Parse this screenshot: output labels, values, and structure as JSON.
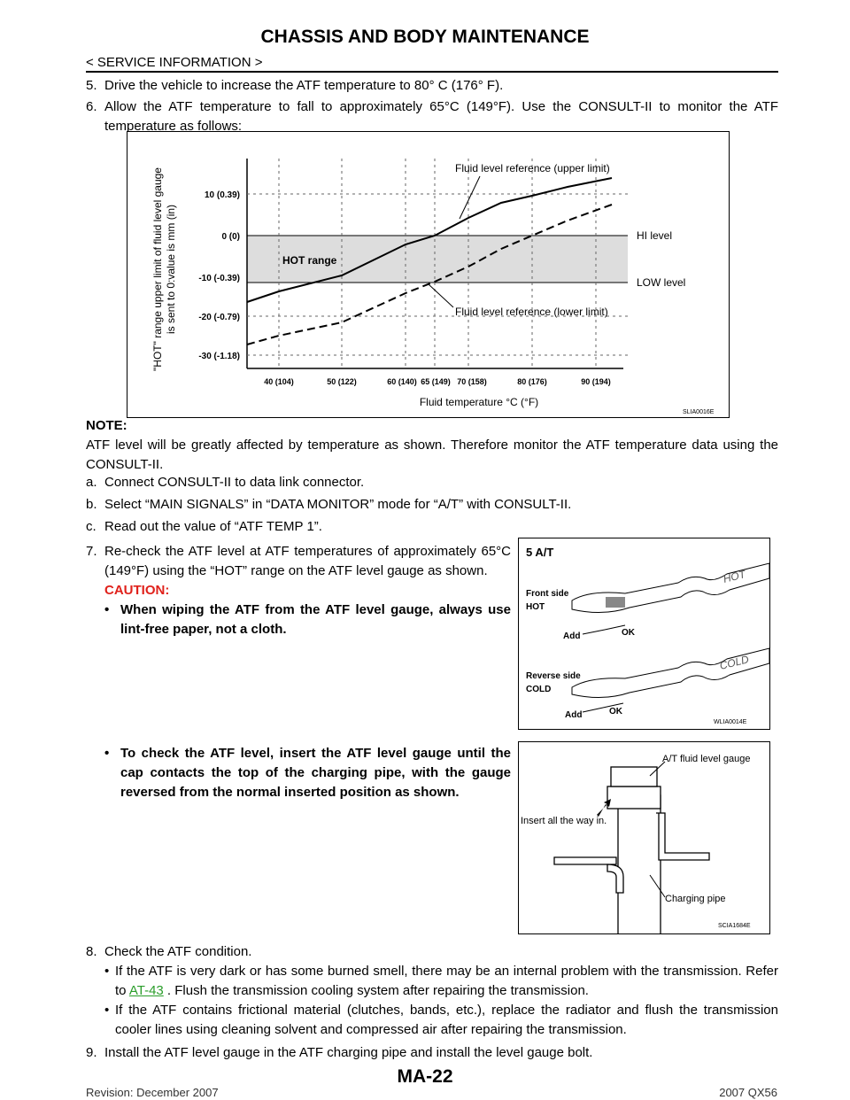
{
  "header": {
    "title": "CHASSIS AND BODY MAINTENANCE",
    "section": "< SERVICE INFORMATION >"
  },
  "steps": {
    "s5": {
      "num": "5.",
      "text": "Drive the vehicle to increase the ATF temperature to 80° C (176° F)."
    },
    "s6": {
      "num": "6.",
      "text": "Allow the ATF temperature to fall to approximately 65°C (149°F). Use the CONSULT-II to monitor the ATF temperature as follows:"
    },
    "note": {
      "label": "NOTE:",
      "text": "ATF level will be greatly affected by temperature as shown. Therefore monitor the ATF temperature data using the CONSULT-II."
    },
    "sa": {
      "num": "a.",
      "text": "Connect CONSULT-II to data link connector."
    },
    "sb": {
      "num": "b.",
      "text": "Select “MAIN SIGNALS” in “DATA MONITOR” mode for “A/T” with CONSULT-II."
    },
    "sc": {
      "num": "c.",
      "text": "Read out the value of “ATF TEMP 1”."
    },
    "s7": {
      "num": "7.",
      "text": "Re-check the ATF level at ATF temperatures of approximately 65°C (149°F) using the “HOT” range on the ATF level gauge as shown.",
      "caution": "CAUTION:",
      "bullets": [
        "When wiping the ATF from the ATF level gauge, always use lint-free paper, not a cloth.",
        "To check the ATF level, insert the ATF level gauge until the cap contacts the top of the charging pipe, with the gauge reversed from the normal inserted position as shown."
      ]
    },
    "s8": {
      "num": "8.",
      "text": "Check the ATF condition.",
      "bullet1": [
        "If the ATF is very dark or has some burned smell, there may be an internal problem with the transmission. Refer to ",
        "AT-43",
        " . Flush the transmission cooling system after repairing the transmission."
      ],
      "bullet2": "If the ATF contains frictional material (clutches, bands, etc.), replace the radiator and flush the transmission cooler lines using cleaning solvent and compressed air after repairing the transmission."
    },
    "s9": {
      "num": "9.",
      "text": "Install the ATF level gauge in the ATF charging pipe and install the level gauge bolt."
    }
  },
  "figure1": {
    "y_label": [
      "\"HOT\" range upper limit of fluid level gauge",
      "is sent to 0:value is mm (in)"
    ],
    "y_ticks": [
      "10 (0.39)",
      "0 (0)",
      "-10 (-0.39)",
      "-20 (-0.79)",
      "-30 (-1.18)"
    ],
    "x_ticks": [
      "40 (104)",
      "50 (122)",
      "60 (140)",
      "65 (149)",
      "70 (158)",
      "80 (176)",
      "90 (194)"
    ],
    "x_label": "Fluid temperature °C (°F)",
    "upper": "Fluid level reference (upper limit)",
    "lower": "Fluid level reference (lower limit)",
    "hi": "HI level",
    "low": "LOW level",
    "hot": "HOT range",
    "code": "SLIA0016E"
  },
  "figure2": {
    "title": "5 A/T",
    "front": "Front side",
    "front_hot": "HOT",
    "add1": "Add",
    "ok1": "OK",
    "gauge_hot": "HOT",
    "reverse": "Reverse side",
    "reverse_cold": "COLD",
    "add2": "Add",
    "ok2": "OK",
    "gauge_cold": "COLD",
    "code": "WLIA0014E"
  },
  "figure3": {
    "gauge": "A/T fluid level gauge",
    "insert": "Insert all the way in.",
    "pipe": "Charging pipe",
    "code": "SCIA1684E"
  },
  "footer": {
    "page": "MA-22",
    "revision": "Revision: December 2007",
    "model": "2007 QX56"
  }
}
